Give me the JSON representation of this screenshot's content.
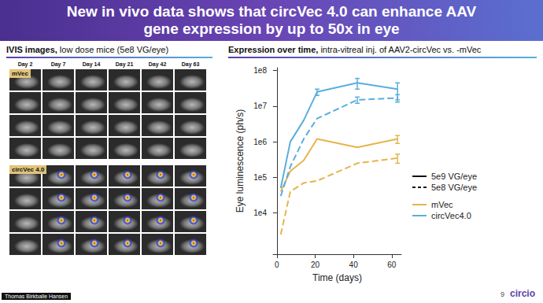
{
  "slide": {
    "title": "New in vivo data shows that circVec 4.0 can enhance AAV gene expression by up to 50x in eye",
    "left_panel": {
      "heading_bold": "IVIS images,",
      "heading": "low dose mice (5e8 VG/eye)",
      "days": [
        "Day 2",
        "Day 7",
        "Day 14",
        "Day 21",
        "Day 42",
        "Day 63"
      ],
      "groups": [
        "mVec",
        "circVec 4.0"
      ]
    },
    "right_panel": {
      "heading_bold": "Expression over time,",
      "heading": "intra-vitreal inj. of AAV2-circVec vs. -mVec"
    },
    "presenter": "Thomas Birkballe Hansen",
    "page_number": 9,
    "logo": "circio"
  },
  "chart_data": {
    "type": "line",
    "x_label": "Time (days)",
    "y_label": "Eye luminescence (ph/s)",
    "x": [
      2,
      7,
      14,
      21,
      42,
      63
    ],
    "series": [
      {
        "name": "mVec",
        "dose": "5e9 VG/eye",
        "color": "#e6b54a",
        "line_style": "solid",
        "values": [
          40000,
          150000,
          300000,
          1200000,
          700000,
          1200000
        ],
        "errors": [
          null,
          null,
          null,
          null,
          null,
          300000
        ]
      },
      {
        "name": "mVec",
        "dose": "5e8 VG/eye",
        "color": "#e6b54a",
        "line_style": "dashed",
        "values": [
          2500,
          40000,
          70000,
          80000,
          250000,
          350000
        ],
        "errors": [
          null,
          null,
          null,
          null,
          null,
          100000
        ]
      },
      {
        "name": "circVec4.0",
        "dose": "5e9 VG/eye",
        "color": "#5aaee0",
        "line_style": "solid",
        "values": [
          50000,
          1000000,
          4000000,
          25000000,
          45000000,
          30000000
        ],
        "errors": [
          null,
          null,
          null,
          5000000,
          15000000,
          15000000
        ]
      },
      {
        "name": "circVec4.0",
        "dose": "5e8 VG/eye",
        "color": "#5aaee0",
        "line_style": "dashed",
        "values": [
          30000,
          200000,
          1200000,
          4500000,
          15000000,
          17000000
        ],
        "errors": [
          null,
          null,
          null,
          null,
          3000000,
          4000000
        ]
      }
    ],
    "xlim": [
      -2,
      65
    ],
    "xticks": [
      0,
      20,
      40,
      60
    ],
    "ylim": [
      700,
      120000000
    ],
    "yticks": [
      {
        "value": 10000,
        "label": "1e4"
      },
      {
        "value": 100000,
        "label": "1e5"
      },
      {
        "value": 1000000,
        "label": "1e6"
      },
      {
        "value": 10000000,
        "label": "1e7"
      },
      {
        "value": 100000000,
        "label": "1e8"
      }
    ],
    "log": "y",
    "grid": false,
    "legend": "right"
  }
}
